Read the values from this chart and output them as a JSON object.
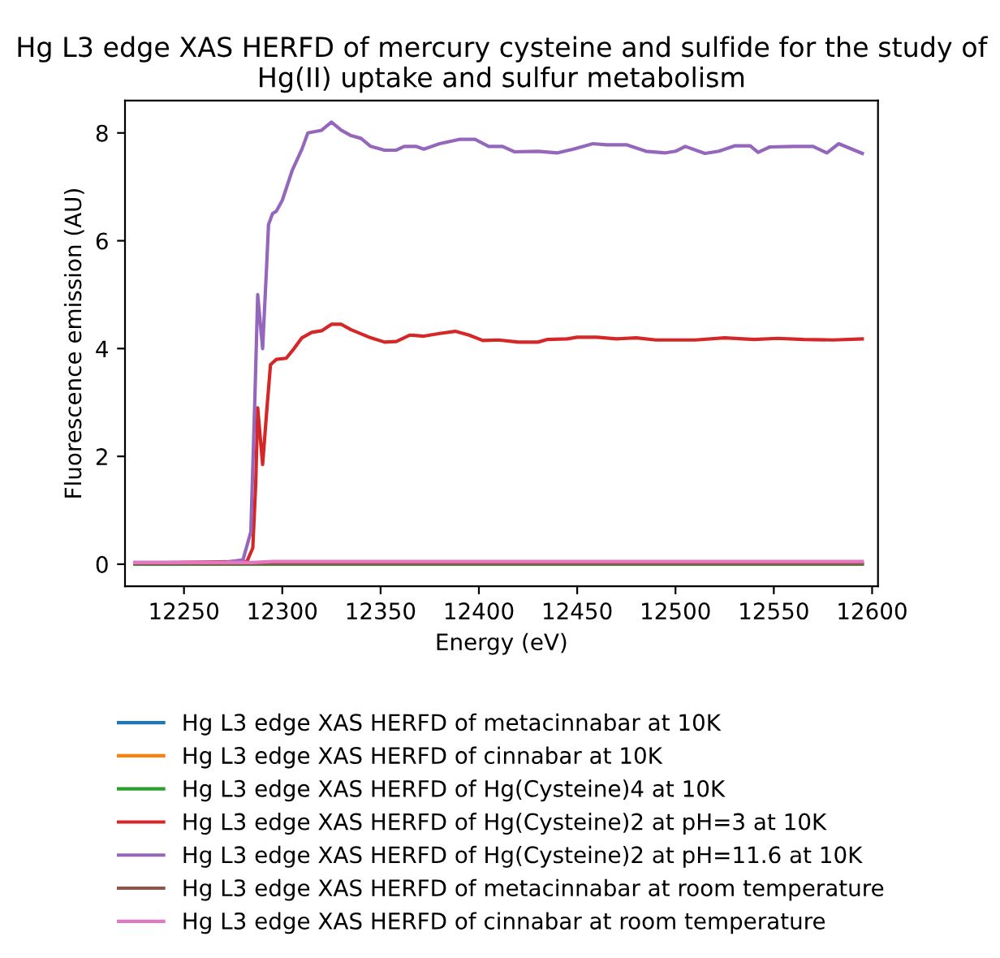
{
  "chart_data": {
    "type": "line",
    "title": "Hg L3 edge XAS HERFD of mercury cysteine and sulfide for the study of\nHg(II) uptake and sulfur metabolism",
    "xlabel": "Energy (eV)",
    "ylabel": "Fluorescence emission (AU)",
    "xlim": [
      12220,
      12603
    ],
    "ylim": [
      -0.41,
      8.6
    ],
    "xticks": [
      12250,
      12300,
      12350,
      12400,
      12450,
      12500,
      12550,
      12600
    ],
    "yticks": [
      0,
      2,
      4,
      6,
      8
    ],
    "grid": false,
    "legend": "bottom",
    "series": [
      {
        "name": "Hg L3 edge XAS HERFD of metacinnabar at 10K",
        "color": "#1f77b4",
        "values": [
          null
        ]
      },
      {
        "name": "Hg L3 edge XAS HERFD of cinnabar at 10K",
        "color": "#ff7f0e",
        "values": [
          null
        ]
      },
      {
        "name": "Hg L3 edge XAS HERFD of Hg(Cysteine)4 at 10K",
        "color": "#2ca02c",
        "x": [
          12225,
          12285,
          12295,
          12595
        ],
        "values": [
          0.0,
          0.0,
          0.0,
          0.0
        ]
      },
      {
        "name": "Hg L3 edge XAS HERFD of Hg(Cysteine)2 at pH=3 at 10K",
        "color": "#d62728",
        "x": [
          12225,
          12282,
          12285,
          12286.5,
          12287.5,
          12290,
          12292,
          12294,
          12297,
          12302,
          12306,
          12310,
          12315,
          12320,
          12325,
          12330,
          12335,
          12345,
          12352,
          12358,
          12365,
          12372,
          12380,
          12388,
          12395,
          12402,
          12410,
          12420,
          12430,
          12435,
          12445,
          12450,
          12460,
          12470,
          12480,
          12490,
          12510,
          12525,
          12540,
          12552,
          12565,
          12580,
          12595
        ],
        "values": [
          0.02,
          0.05,
          0.3,
          1.5,
          2.9,
          1.85,
          2.8,
          3.7,
          3.8,
          3.82,
          4.0,
          4.2,
          4.3,
          4.33,
          4.45,
          4.45,
          4.35,
          4.2,
          4.12,
          4.13,
          4.25,
          4.23,
          4.28,
          4.32,
          4.25,
          4.15,
          4.16,
          4.12,
          4.12,
          4.17,
          4.18,
          4.21,
          4.21,
          4.18,
          4.2,
          4.16,
          4.16,
          4.2,
          4.17,
          4.19,
          4.17,
          4.16,
          4.18
        ]
      },
      {
        "name": "Hg L3 edge XAS HERFD of Hg(Cysteine)2 at pH=11.6 at 10K",
        "color": "#9467bd",
        "x": [
          12225,
          12270,
          12280,
          12284,
          12286,
          12287.5,
          12290,
          12292,
          12293,
          12295,
          12297,
          12300,
          12305,
          12310,
          12313,
          12320,
          12325,
          12330,
          12335,
          12340,
          12345,
          12352,
          12358,
          12362,
          12368,
          12372,
          12380,
          12390,
          12398,
          12405,
          12412,
          12418,
          12430,
          12440,
          12448,
          12458,
          12465,
          12475,
          12485,
          12495,
          12500,
          12505,
          12515,
          12522,
          12530,
          12538,
          12542,
          12548,
          12560,
          12570,
          12577,
          12583,
          12595
        ],
        "values": [
          0.03,
          0.03,
          0.08,
          0.6,
          3.0,
          5.0,
          4.0,
          5.5,
          6.3,
          6.5,
          6.55,
          6.75,
          7.3,
          7.7,
          8.0,
          8.05,
          8.2,
          8.05,
          7.95,
          7.9,
          7.75,
          7.68,
          7.68,
          7.75,
          7.75,
          7.7,
          7.8,
          7.88,
          7.88,
          7.75,
          7.75,
          7.65,
          7.66,
          7.63,
          7.7,
          7.8,
          7.78,
          7.78,
          7.66,
          7.63,
          7.66,
          7.75,
          7.62,
          7.66,
          7.76,
          7.76,
          7.64,
          7.74,
          7.75,
          7.75,
          7.63,
          7.8,
          7.62
        ]
      },
      {
        "name": "Hg L3 edge XAS HERFD of metacinnabar at room temperature",
        "color": "#8c564b",
        "x": [
          12225,
          12285,
          12295,
          12595
        ],
        "values": [
          0.01,
          0.01,
          0.01,
          0.01
        ]
      },
      {
        "name": "Hg L3 edge XAS HERFD of cinnabar at room temperature",
        "color": "#e377c2",
        "x": [
          12225,
          12285,
          12295,
          12595
        ],
        "values": [
          0.03,
          0.03,
          0.05,
          0.05
        ]
      }
    ]
  }
}
